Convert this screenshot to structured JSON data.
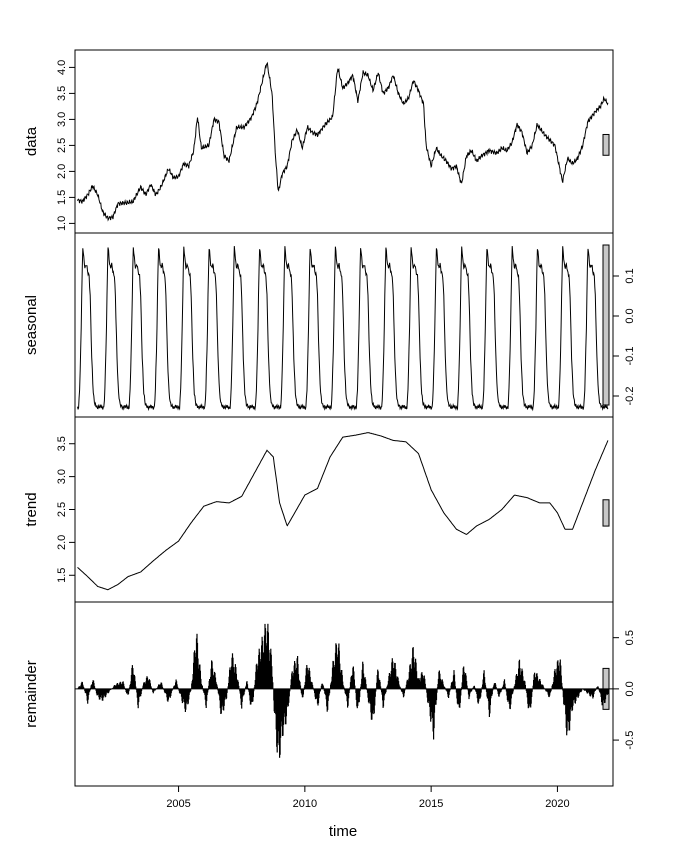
{
  "chart_data": {
    "type": "line",
    "title": "",
    "xlabel": "time",
    "x_range": [
      2000.9,
      2022.2
    ],
    "x_ticks": [
      2005,
      2010,
      2015,
      2020
    ],
    "panels": [
      {
        "name": "data",
        "ylabel": "data",
        "axis_side": "left",
        "ylim": [
          0.95,
          4.2
        ],
        "ticks": [
          1.0,
          1.5,
          2.0,
          2.5,
          3.0,
          3.5,
          4.0
        ],
        "tick_labels": [
          "1.0",
          "1.5",
          "2.0",
          "2.5",
          "3.0",
          "3.5",
          "4.0"
        ],
        "bar_range": 0.4,
        "style": "line",
        "knots": [
          [
            2001.0,
            1.45
          ],
          [
            2001.2,
            1.42
          ],
          [
            2001.4,
            1.55
          ],
          [
            2001.6,
            1.72
          ],
          [
            2001.8,
            1.55
          ],
          [
            2002.0,
            1.22
          ],
          [
            2002.2,
            1.1
          ],
          [
            2002.4,
            1.12
          ],
          [
            2002.6,
            1.38
          ],
          [
            2003.0,
            1.4
          ],
          [
            2003.2,
            1.42
          ],
          [
            2003.5,
            1.7
          ],
          [
            2003.7,
            1.55
          ],
          [
            2003.9,
            1.75
          ],
          [
            2004.1,
            1.55
          ],
          [
            2004.3,
            1.7
          ],
          [
            2004.6,
            2.05
          ],
          [
            2004.8,
            1.88
          ],
          [
            2005.0,
            1.9
          ],
          [
            2005.2,
            2.15
          ],
          [
            2005.4,
            2.1
          ],
          [
            2005.6,
            2.4
          ],
          [
            2005.75,
            3.05
          ],
          [
            2005.9,
            2.45
          ],
          [
            2006.2,
            2.5
          ],
          [
            2006.4,
            3.0
          ],
          [
            2006.6,
            2.95
          ],
          [
            2006.8,
            2.3
          ],
          [
            2007.0,
            2.2
          ],
          [
            2007.3,
            2.85
          ],
          [
            2007.6,
            2.85
          ],
          [
            2007.9,
            3.05
          ],
          [
            2008.1,
            3.3
          ],
          [
            2008.3,
            3.7
          ],
          [
            2008.5,
            4.1
          ],
          [
            2008.7,
            3.5
          ],
          [
            2008.85,
            2.2
          ],
          [
            2008.95,
            1.6
          ],
          [
            2009.1,
            1.95
          ],
          [
            2009.3,
            2.1
          ],
          [
            2009.5,
            2.6
          ],
          [
            2009.7,
            2.8
          ],
          [
            2009.9,
            2.45
          ],
          [
            2010.1,
            2.85
          ],
          [
            2010.3,
            2.75
          ],
          [
            2010.5,
            2.7
          ],
          [
            2010.8,
            2.9
          ],
          [
            2011.1,
            3.05
          ],
          [
            2011.3,
            4.0
          ],
          [
            2011.5,
            3.6
          ],
          [
            2011.7,
            3.7
          ],
          [
            2011.9,
            3.85
          ],
          [
            2012.1,
            3.35
          ],
          [
            2012.3,
            3.9
          ],
          [
            2012.5,
            3.85
          ],
          [
            2012.7,
            3.55
          ],
          [
            2012.9,
            3.9
          ],
          [
            2013.1,
            3.5
          ],
          [
            2013.3,
            3.6
          ],
          [
            2013.5,
            3.85
          ],
          [
            2013.7,
            3.5
          ],
          [
            2013.9,
            3.3
          ],
          [
            2014.1,
            3.4
          ],
          [
            2014.3,
            3.75
          ],
          [
            2014.5,
            3.55
          ],
          [
            2014.7,
            3.3
          ],
          [
            2014.8,
            2.5
          ],
          [
            2015.0,
            2.1
          ],
          [
            2015.2,
            2.45
          ],
          [
            2015.4,
            2.3
          ],
          [
            2015.6,
            2.2
          ],
          [
            2015.8,
            2.05
          ],
          [
            2016.0,
            2.1
          ],
          [
            2016.2,
            1.75
          ],
          [
            2016.4,
            2.3
          ],
          [
            2016.6,
            2.4
          ],
          [
            2016.8,
            2.2
          ],
          [
            2017.0,
            2.3
          ],
          [
            2017.3,
            2.4
          ],
          [
            2017.6,
            2.35
          ],
          [
            2017.8,
            2.45
          ],
          [
            2018.0,
            2.4
          ],
          [
            2018.2,
            2.55
          ],
          [
            2018.4,
            2.9
          ],
          [
            2018.6,
            2.75
          ],
          [
            2018.8,
            2.35
          ],
          [
            2019.0,
            2.5
          ],
          [
            2019.2,
            2.9
          ],
          [
            2019.5,
            2.7
          ],
          [
            2019.7,
            2.6
          ],
          [
            2019.9,
            2.5
          ],
          [
            2020.2,
            1.8
          ],
          [
            2020.4,
            2.25
          ],
          [
            2020.6,
            2.15
          ],
          [
            2020.8,
            2.25
          ],
          [
            2021.0,
            2.5
          ],
          [
            2021.2,
            2.95
          ],
          [
            2021.5,
            3.15
          ],
          [
            2021.7,
            3.25
          ],
          [
            2021.85,
            3.4
          ],
          [
            2022.0,
            3.3
          ]
        ]
      },
      {
        "name": "seasonal",
        "ylabel": "seasonal",
        "axis_side": "right",
        "ylim": [
          -0.235,
          0.19
        ],
        "ticks": [
          -0.2,
          -0.1,
          0.0,
          0.1
        ],
        "tick_labels": [
          "-0.2",
          "-0.1",
          "0.0",
          "0.1"
        ],
        "bar_range": 0.4,
        "style": "line",
        "period": 1.0,
        "cycle_start": 2001.0,
        "cycle_end": 2022.0,
        "cycle_knots": [
          [
            0.0,
            -0.23
          ],
          [
            0.04,
            -0.23
          ],
          [
            0.08,
            -0.19
          ],
          [
            0.14,
            -0.05
          ],
          [
            0.18,
            0.1
          ],
          [
            0.21,
            0.175
          ],
          [
            0.27,
            0.13
          ],
          [
            0.3,
            0.12
          ],
          [
            0.36,
            0.13
          ],
          [
            0.4,
            0.11
          ],
          [
            0.46,
            0.1
          ],
          [
            0.5,
            0.05
          ],
          [
            0.56,
            -0.1
          ],
          [
            0.62,
            -0.19
          ],
          [
            0.68,
            -0.22
          ],
          [
            0.8,
            -0.23
          ],
          [
            0.9,
            -0.225
          ],
          [
            1.0,
            -0.23
          ]
        ]
      },
      {
        "name": "trend",
        "ylabel": "trend",
        "axis_side": "left",
        "ylim": [
          1.2,
          3.8
        ],
        "ticks": [
          1.5,
          2.0,
          2.5,
          3.0,
          3.5
        ],
        "tick_labels": [
          "1.5",
          "2.0",
          "2.5",
          "3.0",
          "3.5"
        ],
        "bar_range": 0.4,
        "style": "line",
        "knots": [
          [
            2001.0,
            1.62
          ],
          [
            2001.4,
            1.48
          ],
          [
            2001.8,
            1.33
          ],
          [
            2002.2,
            1.28
          ],
          [
            2002.6,
            1.36
          ],
          [
            2003.0,
            1.48
          ],
          [
            2003.5,
            1.55
          ],
          [
            2004.0,
            1.72
          ],
          [
            2004.5,
            1.88
          ],
          [
            2005.0,
            2.02
          ],
          [
            2005.5,
            2.3
          ],
          [
            2006.0,
            2.55
          ],
          [
            2006.5,
            2.62
          ],
          [
            2007.0,
            2.6
          ],
          [
            2007.5,
            2.7
          ],
          [
            2008.0,
            3.05
          ],
          [
            2008.5,
            3.4
          ],
          [
            2008.75,
            3.3
          ],
          [
            2009.0,
            2.6
          ],
          [
            2009.3,
            2.25
          ],
          [
            2009.6,
            2.45
          ],
          [
            2010.0,
            2.72
          ],
          [
            2010.5,
            2.82
          ],
          [
            2011.0,
            3.3
          ],
          [
            2011.5,
            3.6
          ],
          [
            2012.0,
            3.63
          ],
          [
            2012.5,
            3.67
          ],
          [
            2013.0,
            3.62
          ],
          [
            2013.5,
            3.55
          ],
          [
            2014.0,
            3.53
          ],
          [
            2014.5,
            3.35
          ],
          [
            2015.0,
            2.8
          ],
          [
            2015.5,
            2.45
          ],
          [
            2016.0,
            2.2
          ],
          [
            2016.4,
            2.12
          ],
          [
            2016.8,
            2.25
          ],
          [
            2017.3,
            2.35
          ],
          [
            2017.8,
            2.5
          ],
          [
            2018.3,
            2.72
          ],
          [
            2018.8,
            2.68
          ],
          [
            2019.3,
            2.6
          ],
          [
            2019.7,
            2.6
          ],
          [
            2020.0,
            2.45
          ],
          [
            2020.3,
            2.2
          ],
          [
            2020.6,
            2.2
          ],
          [
            2021.0,
            2.6
          ],
          [
            2021.5,
            3.1
          ],
          [
            2022.0,
            3.55
          ]
        ]
      },
      {
        "name": "remainder",
        "ylabel": "remainder",
        "axis_side": "right",
        "ylim": [
          -0.88,
          0.78
        ],
        "ticks": [
          -0.5,
          0.0,
          0.5
        ],
        "tick_labels": [
          "-0.5",
          "0.0",
          "0.5"
        ],
        "bar_range": 0.4,
        "style": "bars",
        "knots": [
          [
            2001.0,
            0.0
          ],
          [
            2001.2,
            0.08
          ],
          [
            2001.4,
            -0.15
          ],
          [
            2001.6,
            0.12
          ],
          [
            2001.8,
            -0.1
          ],
          [
            2002.0,
            -0.12
          ],
          [
            2002.2,
            -0.05
          ],
          [
            2002.5,
            0.05
          ],
          [
            2002.8,
            0.08
          ],
          [
            2003.0,
            -0.1
          ],
          [
            2003.2,
            0.3
          ],
          [
            2003.4,
            -0.2
          ],
          [
            2003.6,
            0.05
          ],
          [
            2003.8,
            0.15
          ],
          [
            2004.0,
            -0.05
          ],
          [
            2004.3,
            0.08
          ],
          [
            2004.6,
            -0.15
          ],
          [
            2004.9,
            0.1
          ],
          [
            2005.1,
            -0.1
          ],
          [
            2005.3,
            -0.25
          ],
          [
            2005.5,
            0.0
          ],
          [
            2005.7,
            0.62
          ],
          [
            2005.9,
            0.1
          ],
          [
            2006.1,
            -0.2
          ],
          [
            2006.3,
            0.3
          ],
          [
            2006.5,
            0.1
          ],
          [
            2006.7,
            -0.3
          ],
          [
            2006.9,
            -0.1
          ],
          [
            2007.1,
            0.38
          ],
          [
            2007.3,
            0.2
          ],
          [
            2007.5,
            -0.2
          ],
          [
            2007.7,
            0.1
          ],
          [
            2007.9,
            -0.25
          ],
          [
            2008.1,
            0.3
          ],
          [
            2008.3,
            0.5
          ],
          [
            2008.5,
            0.72
          ],
          [
            2008.7,
            0.3
          ],
          [
            2008.8,
            -0.3
          ],
          [
            2008.95,
            -0.8
          ],
          [
            2009.1,
            -0.5
          ],
          [
            2009.3,
            -0.3
          ],
          [
            2009.5,
            0.2
          ],
          [
            2009.7,
            0.35
          ],
          [
            2009.9,
            -0.15
          ],
          [
            2010.1,
            0.3
          ],
          [
            2010.3,
            0.05
          ],
          [
            2010.5,
            -0.2
          ],
          [
            2010.7,
            0.1
          ],
          [
            2010.9,
            -0.25
          ],
          [
            2011.1,
            0.25
          ],
          [
            2011.3,
            0.55
          ],
          [
            2011.5,
            0.1
          ],
          [
            2011.7,
            -0.2
          ],
          [
            2011.9,
            0.3
          ],
          [
            2012.1,
            -0.3
          ],
          [
            2012.3,
            0.3
          ],
          [
            2012.5,
            -0.1
          ],
          [
            2012.7,
            -0.4
          ],
          [
            2012.9,
            0.25
          ],
          [
            2013.1,
            -0.2
          ],
          [
            2013.3,
            0.1
          ],
          [
            2013.5,
            0.35
          ],
          [
            2013.7,
            0.1
          ],
          [
            2013.9,
            -0.1
          ],
          [
            2014.1,
            0.15
          ],
          [
            2014.3,
            0.45
          ],
          [
            2014.5,
            0.1
          ],
          [
            2014.7,
            0.2
          ],
          [
            2014.9,
            -0.2
          ],
          [
            2015.1,
            -0.5
          ],
          [
            2015.3,
            0.2
          ],
          [
            2015.5,
            0.05
          ],
          [
            2015.7,
            -0.1
          ],
          [
            2015.9,
            0.2
          ],
          [
            2016.1,
            -0.3
          ],
          [
            2016.3,
            0.3
          ],
          [
            2016.5,
            -0.1
          ],
          [
            2016.7,
            0.05
          ],
          [
            2016.9,
            -0.2
          ],
          [
            2017.1,
            0.2
          ],
          [
            2017.3,
            -0.3
          ],
          [
            2017.5,
            0.1
          ],
          [
            2017.7,
            -0.1
          ],
          [
            2017.9,
            0.1
          ],
          [
            2018.1,
            -0.25
          ],
          [
            2018.3,
            0.05
          ],
          [
            2018.5,
            0.3
          ],
          [
            2018.7,
            0.1
          ],
          [
            2018.9,
            -0.3
          ],
          [
            2019.1,
            0.2
          ],
          [
            2019.3,
            0.1
          ],
          [
            2019.5,
            0.0
          ],
          [
            2019.7,
            -0.1
          ],
          [
            2019.9,
            0.2
          ],
          [
            2020.1,
            0.35
          ],
          [
            2020.25,
            -0.15
          ],
          [
            2020.4,
            -0.55
          ],
          [
            2020.6,
            -0.2
          ],
          [
            2020.8,
            -0.1
          ],
          [
            2021.0,
            0.0
          ],
          [
            2021.2,
            -0.05
          ],
          [
            2021.4,
            -0.1
          ],
          [
            2021.6,
            0.05
          ],
          [
            2021.8,
            -0.2
          ],
          [
            2022.0,
            -0.05
          ]
        ]
      }
    ]
  }
}
